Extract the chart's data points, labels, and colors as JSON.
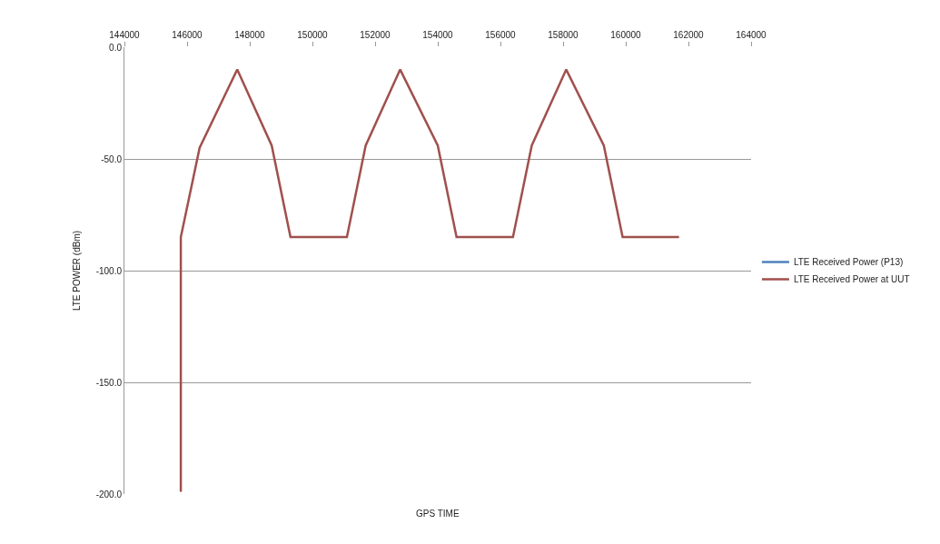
{
  "chart_data": {
    "type": "line",
    "xlabel": "GPS TIME",
    "ylabel": "LTE POWER (dBm)",
    "x": [
      145800,
      145800,
      146400,
      147600,
      148700,
      149300,
      151100,
      151700,
      152800,
      154000,
      154600,
      156400,
      157000,
      158100,
      159300,
      159900,
      161700
    ],
    "series": [
      {
        "name": "LTE Received Power (P13)",
        "color": "#4f81bd",
        "values": [
          null,
          null,
          null,
          null,
          null,
          null,
          null,
          null,
          null,
          null,
          null,
          null,
          null,
          null,
          null,
          null,
          null
        ]
      },
      {
        "name": "LTE Received Power at UUT",
        "color": "#a0504d",
        "values": [
          -199,
          -85,
          -45,
          -10,
          -44,
          -85,
          -85,
          -44,
          -10,
          -44,
          -85,
          -85,
          -44,
          -10,
          -44,
          -85,
          -85
        ]
      }
    ],
    "xlim": [
      144000,
      164000
    ],
    "xticks": [
      144000,
      146000,
      148000,
      150000,
      152000,
      154000,
      156000,
      158000,
      160000,
      162000,
      164000
    ],
    "ylim": [
      -200,
      0
    ],
    "yticks": [
      {
        "value": 0,
        "label": "0.0"
      },
      {
        "value": -50,
        "label": "-50.0"
      },
      {
        "value": -100,
        "label": "-100.0"
      },
      {
        "value": -150,
        "label": "-150.0"
      },
      {
        "value": -200,
        "label": "-200.0"
      }
    ],
    "grid": "y",
    "legend": "right",
    "marker": "none",
    "line_style": "solid"
  }
}
